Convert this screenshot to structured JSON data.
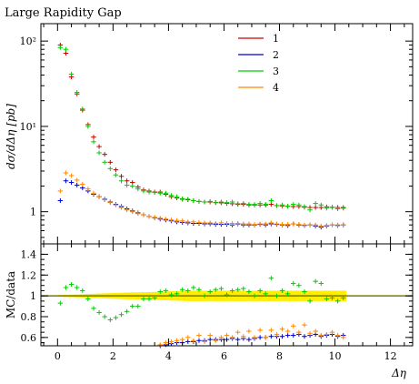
{
  "chart_data": [
    {
      "type": "scatter",
      "title": "Large Rapidity Gap",
      "ylabel": "dσ/dΔη [pb]",
      "yscale": "log",
      "xlim": [
        -0.6,
        12.8
      ],
      "ylim": [
        0.42,
        160
      ],
      "yticks": [
        {
          "value": 1,
          "label": "1"
        },
        {
          "value": 10,
          "label": "10¹"
        },
        {
          "value": 100,
          "label": "10²"
        }
      ],
      "legend_position": "top-right",
      "series": [
        {
          "name": "1",
          "color": "#cc0000",
          "x": [
            0.1,
            0.3,
            0.5,
            0.7,
            0.9,
            1.1,
            1.3,
            1.5,
            1.7,
            1.9,
            2.1,
            2.3,
            2.5,
            2.7,
            2.9,
            3.1,
            3.3,
            3.5,
            3.7,
            3.9,
            4.1,
            4.3,
            4.5,
            4.7,
            4.9,
            5.1,
            5.3,
            5.5,
            5.7,
            5.9,
            6.1,
            6.3,
            6.5,
            6.7,
            6.9,
            7.1,
            7.3,
            7.5,
            7.7,
            7.9,
            8.1,
            8.3,
            8.5,
            8.7,
            8.9,
            9.1,
            9.3,
            9.5,
            9.7,
            9.9,
            10.1,
            10.3
          ],
          "y": [
            90,
            72,
            38,
            24,
            15.5,
            10.5,
            7.5,
            5.8,
            4.7,
            3.8,
            3.1,
            2.6,
            2.3,
            2.2,
            1.95,
            1.8,
            1.75,
            1.7,
            1.7,
            1.6,
            1.5,
            1.45,
            1.4,
            1.38,
            1.35,
            1.32,
            1.3,
            1.3,
            1.28,
            1.27,
            1.25,
            1.24,
            1.22,
            1.22,
            1.2,
            1.2,
            1.2,
            1.2,
            1.22,
            1.18,
            1.17,
            1.16,
            1.15,
            1.15,
            1.13,
            1.12,
            1.12,
            1.12,
            1.14,
            1.13,
            1.12,
            1.12
          ]
        },
        {
          "name": "2",
          "color": "#0000cc",
          "x": [
            0.1,
            0.3,
            0.5,
            0.7,
            0.9,
            1.1,
            1.3,
            1.5,
            1.7,
            1.9,
            2.1,
            2.3,
            2.5,
            2.7,
            2.9,
            3.1,
            3.3,
            3.5,
            3.7,
            3.9,
            4.1,
            4.3,
            4.5,
            4.7,
            4.9,
            5.1,
            5.3,
            5.5,
            5.7,
            5.9,
            6.1,
            6.3,
            6.5,
            6.7,
            6.9,
            7.1,
            7.3,
            7.5,
            7.7,
            7.9,
            8.1,
            8.3,
            8.5,
            8.7,
            8.9,
            9.1,
            9.3,
            9.5,
            9.7,
            9.9,
            10.1,
            10.3
          ],
          "y": [
            1.35,
            2.3,
            2.2,
            2.05,
            1.9,
            1.75,
            1.6,
            1.5,
            1.4,
            1.3,
            1.22,
            1.15,
            1.08,
            1.02,
            0.97,
            0.92,
            0.88,
            0.85,
            0.82,
            0.8,
            0.78,
            0.76,
            0.75,
            0.74,
            0.73,
            0.73,
            0.72,
            0.72,
            0.71,
            0.71,
            0.71,
            0.7,
            0.72,
            0.7,
            0.7,
            0.7,
            0.71,
            0.7,
            0.72,
            0.71,
            0.7,
            0.69,
            0.72,
            0.7,
            0.69,
            0.7,
            0.68,
            0.66,
            0.68,
            0.7,
            0.69,
            0.7
          ]
        },
        {
          "name": "3",
          "color": "#00cc00",
          "x": [
            0.1,
            0.3,
            0.5,
            0.7,
            0.9,
            1.1,
            1.3,
            1.5,
            1.7,
            1.9,
            2.1,
            2.3,
            2.5,
            2.7,
            2.9,
            3.1,
            3.3,
            3.5,
            3.7,
            3.9,
            4.1,
            4.3,
            4.5,
            4.7,
            4.9,
            5.1,
            5.3,
            5.5,
            5.7,
            5.9,
            6.1,
            6.3,
            6.5,
            6.7,
            6.9,
            7.1,
            7.3,
            7.5,
            7.7,
            7.9,
            8.1,
            8.3,
            8.5,
            8.7,
            8.9,
            9.1,
            9.3,
            9.5,
            9.7,
            9.9,
            10.1,
            10.3
          ],
          "y": [
            84,
            80,
            41,
            25,
            16,
            10,
            6.6,
            4.9,
            3.8,
            3.2,
            2.7,
            2.3,
            2.05,
            2.0,
            1.85,
            1.75,
            1.7,
            1.68,
            1.65,
            1.65,
            1.55,
            1.5,
            1.42,
            1.4,
            1.35,
            1.32,
            1.3,
            1.32,
            1.28,
            1.3,
            1.28,
            1.3,
            1.24,
            1.25,
            1.22,
            1.22,
            1.25,
            1.22,
            1.35,
            1.18,
            1.2,
            1.16,
            1.22,
            1.2,
            1.15,
            1.05,
            1.25,
            1.2,
            1.1,
            1.12,
            1.08,
            1.1
          ]
        },
        {
          "name": "4",
          "color": "#ff8800",
          "x": [
            0.1,
            0.3,
            0.5,
            0.7,
            0.9,
            1.1,
            1.3,
            1.5,
            1.7,
            1.9,
            2.1,
            2.3,
            2.5,
            2.7,
            2.9,
            3.1,
            3.3,
            3.5,
            3.7,
            3.9,
            4.1,
            4.3,
            4.5,
            4.7,
            4.9,
            5.1,
            5.3,
            5.5,
            5.7,
            5.9,
            6.1,
            6.3,
            6.5,
            6.7,
            6.9,
            7.1,
            7.3,
            7.5,
            7.7,
            7.9,
            8.1,
            8.3,
            8.5,
            8.7,
            8.9,
            9.1,
            9.3,
            9.5,
            9.7,
            9.9,
            10.1,
            10.3
          ],
          "y": [
            1.75,
            2.85,
            2.65,
            2.35,
            2.1,
            1.85,
            1.65,
            1.5,
            1.38,
            1.28,
            1.2,
            1.12,
            1.05,
            1.0,
            0.95,
            0.92,
            0.88,
            0.86,
            0.84,
            0.82,
            0.8,
            0.79,
            0.78,
            0.76,
            0.76,
            0.75,
            0.74,
            0.74,
            0.73,
            0.74,
            0.73,
            0.73,
            0.73,
            0.72,
            0.72,
            0.71,
            0.72,
            0.72,
            0.74,
            0.72,
            0.71,
            0.71,
            0.72,
            0.71,
            0.7,
            0.7,
            0.7,
            0.68,
            0.69,
            0.7,
            0.7,
            0.7
          ]
        }
      ]
    },
    {
      "type": "scatter",
      "ylabel": "MC/data",
      "xlabel": "Δη",
      "xlim": [
        -0.6,
        12.8
      ],
      "ylim": [
        0.52,
        1.5
      ],
      "xticks": [
        0,
        2,
        4,
        6,
        8,
        10,
        12
      ],
      "yticks": [
        0.6,
        0.8,
        1,
        1.2,
        1.4
      ],
      "reference_line": 1,
      "uncertainty_band": {
        "color": "#ffee00",
        "x": [
          0.1,
          0.3,
          0.5,
          0.7,
          0.9,
          1.1,
          1.3,
          1.5,
          1.7,
          1.9,
          2.1,
          2.3,
          2.5,
          2.7,
          2.9,
          3.1,
          3.3,
          3.5,
          3.7,
          3.9,
          4.1,
          4.3,
          4.5,
          4.7,
          4.9,
          5.1,
          5.3,
          5.5,
          5.7,
          5.9,
          6.1,
          6.3,
          6.5,
          6.7,
          6.9,
          7.1,
          7.3,
          7.5,
          7.7,
          7.9,
          8.1,
          8.3,
          8.5,
          8.7,
          8.9,
          9.1,
          9.3,
          9.5,
          9.7,
          9.9,
          10.1,
          10.3
        ],
        "half_width": [
          0.008,
          0.01,
          0.012,
          0.014,
          0.016,
          0.018,
          0.02,
          0.022,
          0.024,
          0.026,
          0.028,
          0.03,
          0.032,
          0.033,
          0.034,
          0.035,
          0.036,
          0.038,
          0.04,
          0.042,
          0.045,
          0.046,
          0.048,
          0.05,
          0.05,
          0.05,
          0.05,
          0.05,
          0.05,
          0.05,
          0.05,
          0.05,
          0.05,
          0.05,
          0.05,
          0.05,
          0.05,
          0.05,
          0.05,
          0.05,
          0.05,
          0.05,
          0.05,
          0.05,
          0.05,
          0.05,
          0.05,
          0.05,
          0.05,
          0.05,
          0.05,
          0.05
        ]
      },
      "series": [
        {
          "name": "2",
          "color": "#0000cc",
          "x": [
            3.1,
            3.3,
            3.5,
            3.7,
            3.9,
            4.1,
            4.3,
            4.5,
            4.7,
            4.9,
            5.1,
            5.3,
            5.5,
            5.7,
            5.9,
            6.1,
            6.3,
            6.5,
            6.7,
            6.9,
            7.1,
            7.3,
            7.5,
            7.7,
            7.9,
            8.1,
            8.3,
            8.5,
            8.7,
            8.9,
            9.1,
            9.3,
            9.5,
            9.7,
            9.9,
            10.1,
            10.3
          ],
          "y": [
            0.51,
            0.5,
            0.5,
            0.52,
            0.53,
            0.54,
            0.55,
            0.55,
            0.56,
            0.56,
            0.57,
            0.57,
            0.58,
            0.58,
            0.58,
            0.58,
            0.59,
            0.58,
            0.59,
            0.58,
            0.59,
            0.6,
            0.6,
            0.61,
            0.61,
            0.61,
            0.62,
            0.62,
            0.63,
            0.61,
            0.62,
            0.63,
            0.61,
            0.62,
            0.63,
            0.61,
            0.62
          ]
        },
        {
          "name": "3",
          "color": "#00cc00",
          "x": [
            0.1,
            0.3,
            0.5,
            0.7,
            0.9,
            1.1,
            1.3,
            1.5,
            1.7,
            1.9,
            2.1,
            2.3,
            2.5,
            2.7,
            2.9,
            3.1,
            3.3,
            3.5,
            3.7,
            3.9,
            4.1,
            4.3,
            4.5,
            4.7,
            4.9,
            5.1,
            5.3,
            5.5,
            5.7,
            5.9,
            6.1,
            6.3,
            6.5,
            6.7,
            6.9,
            7.1,
            7.3,
            7.5,
            7.7,
            7.9,
            8.1,
            8.3,
            8.5,
            8.7,
            8.9,
            9.1,
            9.3,
            9.5,
            9.7,
            9.9,
            10.1,
            10.3
          ],
          "y": [
            0.93,
            1.08,
            1.11,
            1.08,
            1.05,
            0.97,
            0.88,
            0.84,
            0.8,
            0.77,
            0.79,
            0.82,
            0.85,
            0.9,
            0.9,
            0.97,
            0.97,
            0.98,
            1.04,
            1.05,
            1.01,
            1.02,
            1.06,
            1.05,
            1.08,
            1.06,
            1.0,
            1.04,
            1.06,
            1.07,
            1.01,
            1.05,
            1.06,
            1.07,
            1.04,
            1.0,
            1.05,
            1.02,
            1.17,
            1.0,
            1.05,
            1.02,
            1.12,
            1.1,
            1.04,
            0.95,
            1.14,
            1.12,
            0.97,
            0.98,
            0.95,
            0.98
          ]
        },
        {
          "name": "4",
          "color": "#ff8800",
          "x": [
            3.7,
            3.9,
            4.1,
            4.3,
            4.5,
            4.7,
            4.9,
            5.1,
            5.3,
            5.5,
            5.7,
            5.9,
            6.1,
            6.3,
            6.5,
            6.7,
            6.9,
            7.1,
            7.3,
            7.5,
            7.7,
            7.9,
            8.1,
            8.3,
            8.5,
            8.7,
            8.9,
            9.1,
            9.3,
            9.5,
            9.7,
            9.9,
            10.1,
            10.3
          ],
          "y": [
            0.53,
            0.55,
            0.56,
            0.57,
            0.58,
            0.6,
            0.57,
            0.62,
            0.56,
            0.62,
            0.57,
            0.6,
            0.62,
            0.6,
            0.65,
            0.61,
            0.66,
            0.6,
            0.67,
            0.6,
            0.67,
            0.63,
            0.68,
            0.66,
            0.71,
            0.65,
            0.72,
            0.64,
            0.66,
            0.62,
            0.63,
            0.65,
            0.62,
            0.6
          ]
        }
      ]
    }
  ]
}
